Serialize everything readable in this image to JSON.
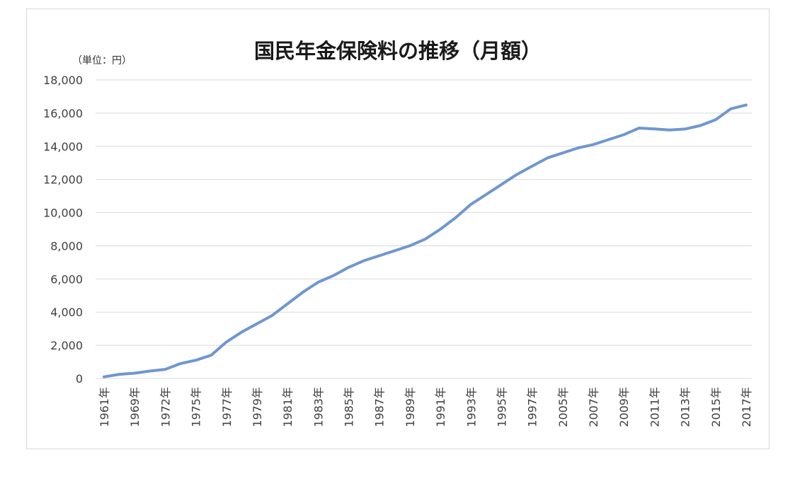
{
  "chart_data": {
    "type": "line",
    "title": "国民年金保険料の推移（月額）",
    "ylabel": "（単位：円）",
    "xlabel": "",
    "ylim": [
      0,
      18000
    ],
    "y_ticks": [
      "0",
      "2,000",
      "4,000",
      "6,000",
      "8,000",
      "10,000",
      "12,000",
      "14,000",
      "16,000",
      "18,000"
    ],
    "grid": true,
    "legend": "none",
    "line_color": "#6f97cf",
    "x_tick_labels": [
      "1961年",
      "1969年",
      "1972年",
      "1975年",
      "1977年",
      "1979年",
      "1981年",
      "1983年",
      "1985年",
      "1987年",
      "1989年",
      "1991年",
      "1993年",
      "1995年",
      "1997年",
      "2005年",
      "2007年",
      "2009年",
      "2011年",
      "2013年",
      "2015年",
      "2017年"
    ],
    "categories": [
      "1961年",
      "",
      "1969年",
      "",
      "1972年",
      "",
      "1975年",
      "",
      "1977年",
      "",
      "1979年",
      "",
      "1981年",
      "",
      "1983年",
      "",
      "1985年",
      "",
      "1987年",
      "",
      "1989年",
      "",
      "1991年",
      "",
      "1993年",
      "",
      "1995年",
      "",
      "1997年",
      "",
      "2005年",
      "",
      "2007年",
      "",
      "2009年",
      "",
      "2011年",
      "",
      "2013年",
      "",
      "2015年",
      "",
      "2017年"
    ],
    "series": [
      {
        "values": [
          100,
          250,
          320,
          450,
          550,
          900,
          1100,
          1400,
          2200,
          2800,
          3300,
          3800,
          4500,
          5200,
          5800,
          6200,
          6700,
          7100,
          7400,
          7700,
          8000,
          8400,
          9000,
          9700,
          10500,
          11100,
          11700,
          12300,
          12800,
          13300,
          13600,
          13900,
          14100,
          14400,
          14700,
          15100,
          15050,
          14980,
          15040,
          15250,
          15600,
          16260,
          16490
        ]
      }
    ]
  }
}
